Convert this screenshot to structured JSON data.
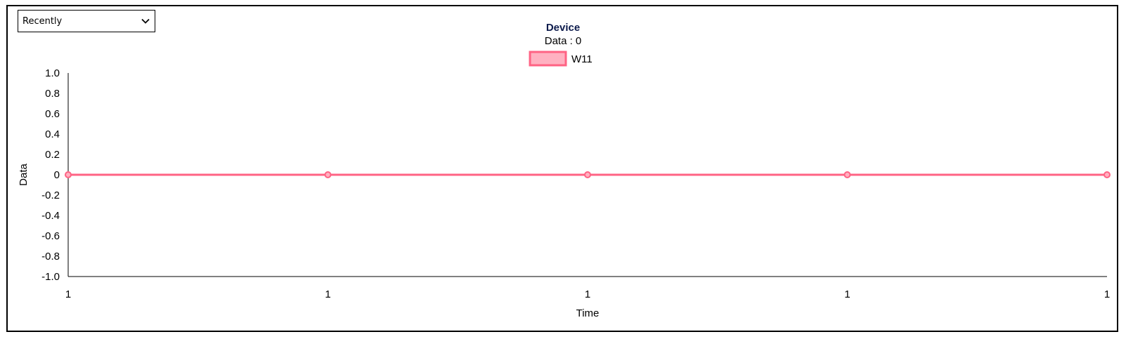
{
  "filter": {
    "selected": "Recently"
  },
  "chart_data": {
    "type": "line",
    "title": "Device",
    "subtitle": "Data : 0",
    "xlabel": "Time",
    "ylabel": "Data",
    "categories": [
      "1",
      "1",
      "1",
      "1",
      "1"
    ],
    "series": [
      {
        "name": "W11",
        "values": [
          0,
          0,
          0,
          0,
          0
        ],
        "color": "#ff6384",
        "fill": "#ffb1c1"
      }
    ],
    "ylim": [
      -1.0,
      1.0
    ],
    "yticks": [
      "1.0",
      "0.8",
      "0.6",
      "0.4",
      "0.2",
      "0",
      "-0.2",
      "-0.4",
      "-0.6",
      "-0.8",
      "-1.0"
    ],
    "grid": false,
    "legend": "top"
  },
  "colors": {
    "title": "#0d1b4c",
    "axis": "#000000"
  }
}
